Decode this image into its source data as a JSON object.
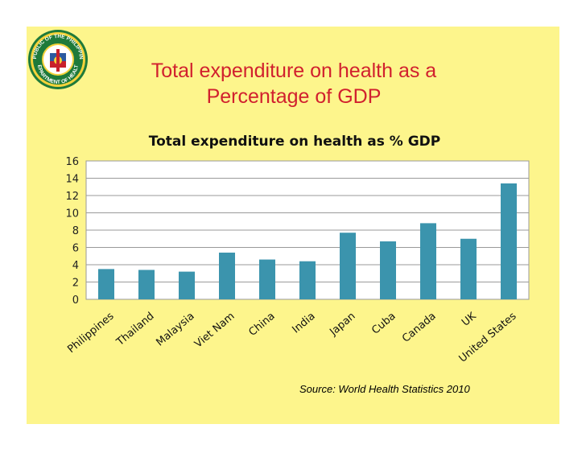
{
  "slide": {
    "title_line1": "Total expenditure on health as a",
    "title_line2": "Percentage of GDP",
    "source": "Source:  World Health Statistics 2010",
    "background_color": "#fdf58c",
    "title_color": "#d1202e"
  },
  "logo": {
    "top_text": "REPUBLIC OF THE PHILIPPINES",
    "bottom_text": "DEPARTMENT OF HEALTH"
  },
  "chart_data": {
    "type": "bar",
    "title": "Total expenditure on health as % GDP",
    "categories": [
      "Philippines",
      "Thailand",
      "Malaysia",
      "Viet Nam",
      "China",
      "India",
      "Japan",
      "Cuba",
      "Canada",
      "UK",
      "United States"
    ],
    "values": [
      3.5,
      3.4,
      3.2,
      5.4,
      4.6,
      4.4,
      7.7,
      6.7,
      8.8,
      7.0,
      13.4
    ],
    "ylim": [
      0,
      16
    ],
    "yticks": [
      0,
      2,
      4,
      6,
      8,
      10,
      12,
      14,
      16
    ],
    "grid": true,
    "bar_color": "#3b94ad",
    "xlabel": "",
    "ylabel": ""
  }
}
